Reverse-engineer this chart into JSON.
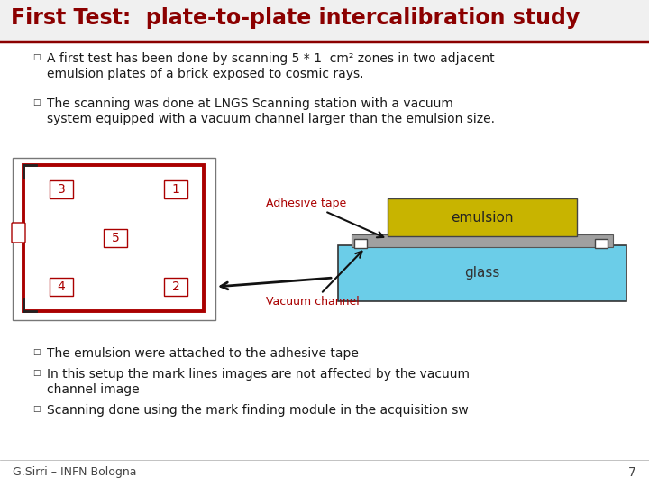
{
  "title": "First Test:  plate-to-plate intercalibration study",
  "title_color": "#8B0000",
  "title_fontsize": 17,
  "bg_color": "#FFFFFF",
  "bullet1": "A first test has been done by scanning 5 * 1  cm² zones in two adjacent\nemulsion plates of a brick exposed to cosmic rays.",
  "bullet2": "The scanning was done at LNGS Scanning station with a vacuum\nsystem equipped with a vacuum channel larger than the emulsion size.",
  "bullet3": "The emulsion were attached to the adhesive tape",
  "bullet4": "In this setup the mark lines images are not affected by the vacuum\nchannel image",
  "bullet5": "Scanning done using the mark finding module in the acquisition sw",
  "footer": "G.Sirri – INFN Bologna",
  "page_num": "7",
  "text_color": "#1a1a1a",
  "red_color": "#AA0000",
  "title_red": "#8B0000",
  "emulsion_color": "#C8B400",
  "glass_color": "#6BCDE8",
  "adhesive_color": "#A0A0A0",
  "label_color": "#AA0000",
  "zone_box_color": "#AA0000",
  "body_font": "DejaVu Sans",
  "mono_font": "DejaVu Sans Mono",
  "bullet_size": 10,
  "title_underline_color": "#8B0000"
}
